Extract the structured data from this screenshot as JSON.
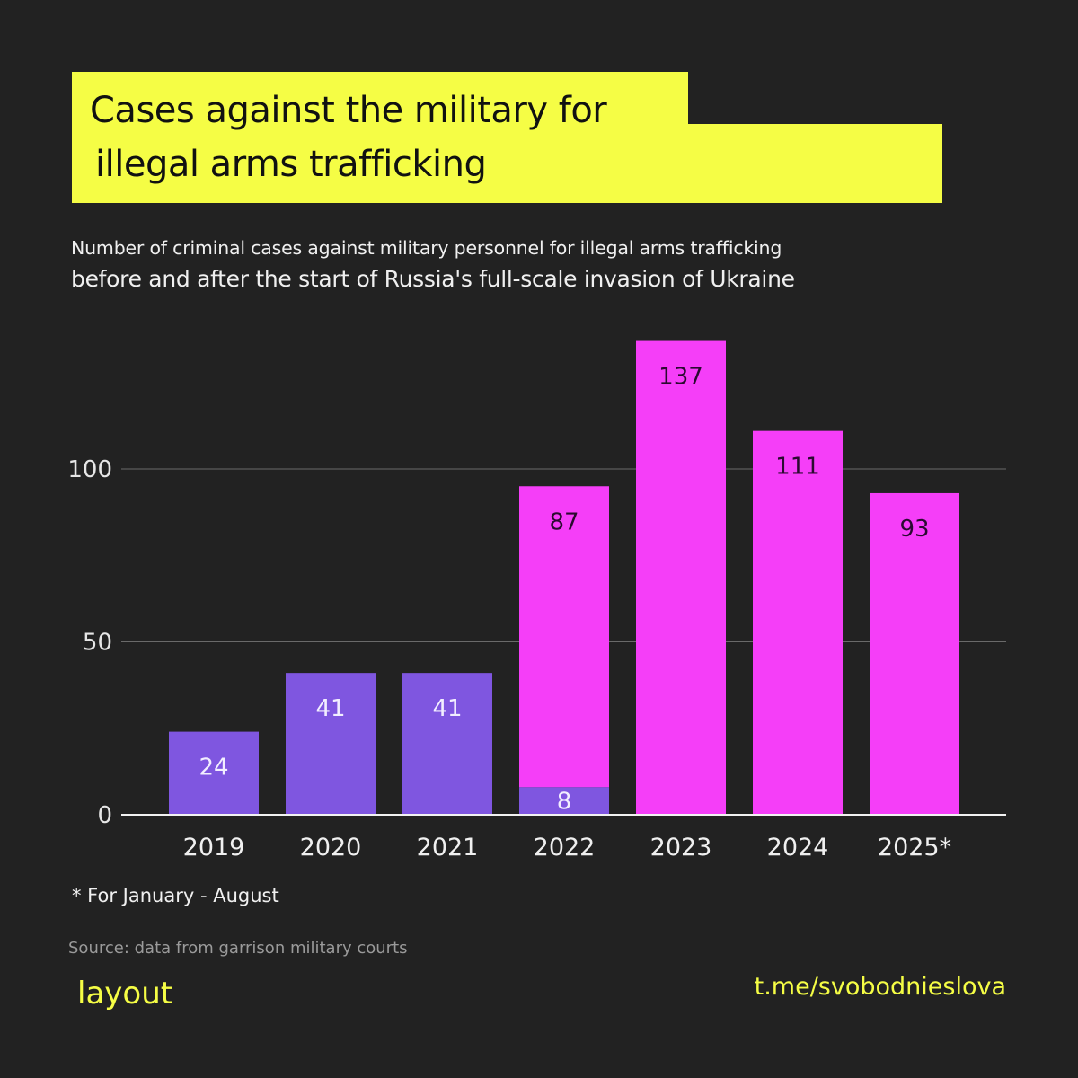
{
  "title": {
    "line1": "Cases against the military for",
    "line2": "illegal arms trafficking"
  },
  "subtitle": {
    "line1": "Number of criminal cases against military personnel for illegal arms trafficking",
    "line2": "before and after the start of Russia's full-scale invasion of Ukraine"
  },
  "footnote": "* For January - August",
  "source": "Source: data from garrison military courts",
  "brand": {
    "left": "layout",
    "right": "t.me/svobodnieslova"
  },
  "colors": {
    "background": "#222222",
    "title_highlight": "#f5fd45",
    "before_invasion": "#7f56e0",
    "after_invasion": "#f53ef8",
    "brand": "#f5fd45"
  },
  "chart_data": {
    "type": "bar",
    "stacked": true,
    "categories": [
      "2019",
      "2020",
      "2021",
      "2022",
      "2023",
      "2024",
      "2025*"
    ],
    "series": [
      {
        "color": "#7f56e0",
        "values": [
          24,
          41,
          41,
          8,
          0,
          0,
          0
        ]
      },
      {
        "color": "#f53ef8",
        "values": [
          0,
          0,
          0,
          87,
          137,
          111,
          93
        ]
      }
    ],
    "yticks": [
      0,
      50,
      100
    ],
    "ylim": [
      0,
      137
    ],
    "grid": true,
    "legend": "none"
  }
}
